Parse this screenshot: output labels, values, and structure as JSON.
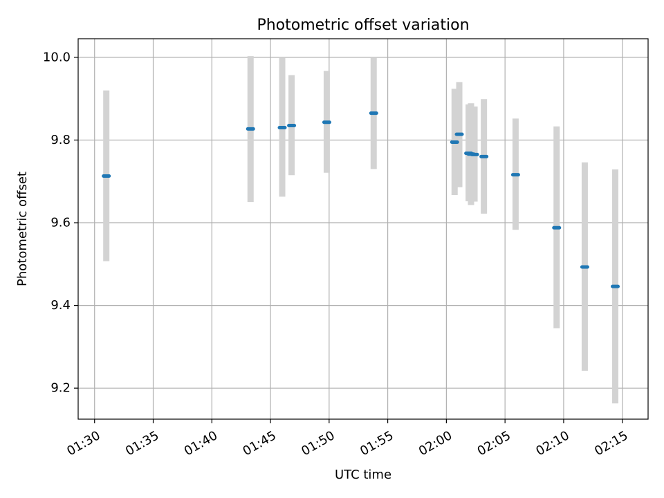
{
  "chart_data": {
    "type": "scatter",
    "title": "Photometric offset variation",
    "xlabel": "UTC time",
    "ylabel": "Photometric offset",
    "grid": true,
    "xlim": [
      "01:28.6",
      "02:17.2"
    ],
    "ylim": [
      9.125,
      10.045
    ],
    "x_ticks": [
      "01:30",
      "01:35",
      "01:40",
      "01:45",
      "01:50",
      "01:55",
      "02:00",
      "02:05",
      "02:10",
      "02:15"
    ],
    "y_ticks": [
      "9.2",
      "9.4",
      "9.6",
      "9.8",
      "10.0"
    ],
    "colors": {
      "marker": "#1f77b4",
      "errorbar": "#d3d3d3",
      "grid": "#b0b0b0"
    },
    "points": [
      {
        "time": "01:31.0",
        "offset": 9.713,
        "lower": 9.507,
        "upper": 9.92
      },
      {
        "time": "01:43.3",
        "offset": 9.827,
        "lower": 9.65,
        "upper": 10.003
      },
      {
        "time": "01:46.0",
        "offset": 9.83,
        "lower": 9.663,
        "upper": 10.0
      },
      {
        "time": "01:46.8",
        "offset": 9.835,
        "lower": 9.715,
        "upper": 9.957
      },
      {
        "time": "01:49.8",
        "offset": 9.843,
        "lower": 9.721,
        "upper": 9.967
      },
      {
        "time": "01:53.8",
        "offset": 9.865,
        "lower": 9.73,
        "upper": 10.0
      },
      {
        "time": "02:00.7",
        "offset": 9.795,
        "lower": 9.667,
        "upper": 9.924
      },
      {
        "time": "02:01.1",
        "offset": 9.814,
        "lower": 9.686,
        "upper": 9.94
      },
      {
        "time": "02:01.9",
        "offset": 9.768,
        "lower": 9.652,
        "upper": 9.886
      },
      {
        "time": "02:02.1",
        "offset": 9.766,
        "lower": 9.643,
        "upper": 9.889
      },
      {
        "time": "02:02.4",
        "offset": 9.765,
        "lower": 9.651,
        "upper": 9.881
      },
      {
        "time": "02:03.2",
        "offset": 9.76,
        "lower": 9.622,
        "upper": 9.899
      },
      {
        "time": "02:05.9",
        "offset": 9.716,
        "lower": 9.583,
        "upper": 9.852
      },
      {
        "time": "02:09.4",
        "offset": 9.588,
        "lower": 9.345,
        "upper": 9.833
      },
      {
        "time": "02:11.8",
        "offset": 9.493,
        "lower": 9.242,
        "upper": 9.746
      },
      {
        "time": "02:14.4",
        "offset": 9.446,
        "lower": 9.163,
        "upper": 9.729
      }
    ]
  }
}
